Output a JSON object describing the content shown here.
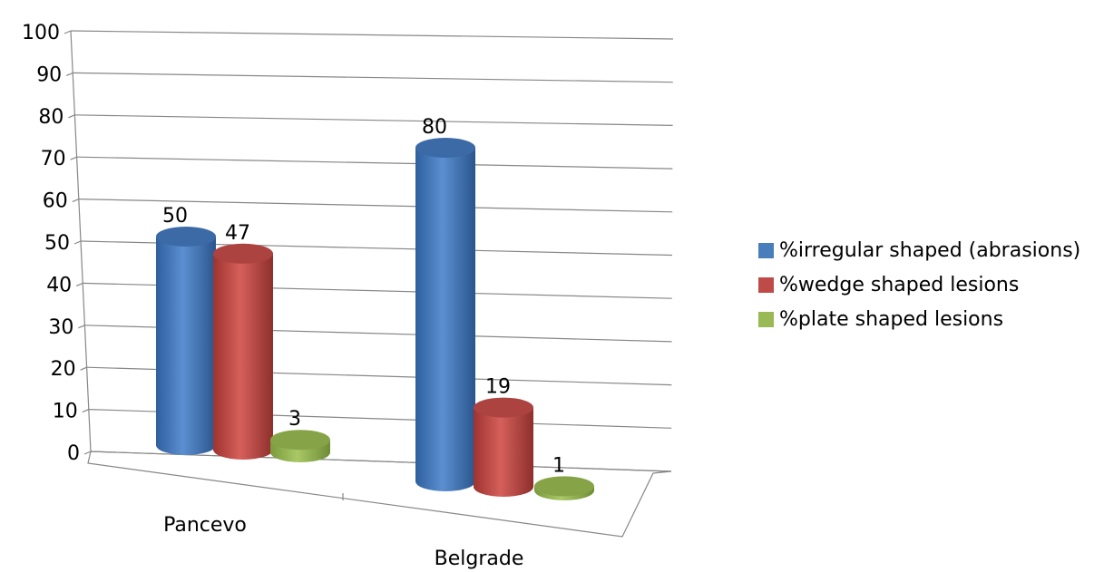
{
  "chart_data": {
    "type": "bar",
    "categories": [
      "Pancevo",
      "Belgrade"
    ],
    "series": [
      {
        "name": "%irregular shaped (abrasions)",
        "values": [
          50,
          80
        ],
        "color": "#4a7ebb"
      },
      {
        "name": "%wedge shaped lesions",
        "values": [
          47,
          19
        ],
        "color": "#be4b48"
      },
      {
        "name": "%plate shaped lesions",
        "values": [
          3,
          1
        ],
        "color": "#98b954"
      }
    ],
    "ylim": [
      0,
      100
    ],
    "yticks": [
      "0",
      "10",
      "20",
      "30",
      "40",
      "50",
      "60",
      "70",
      "80",
      "90",
      "100"
    ],
    "grid": true,
    "legend_position": "right"
  }
}
